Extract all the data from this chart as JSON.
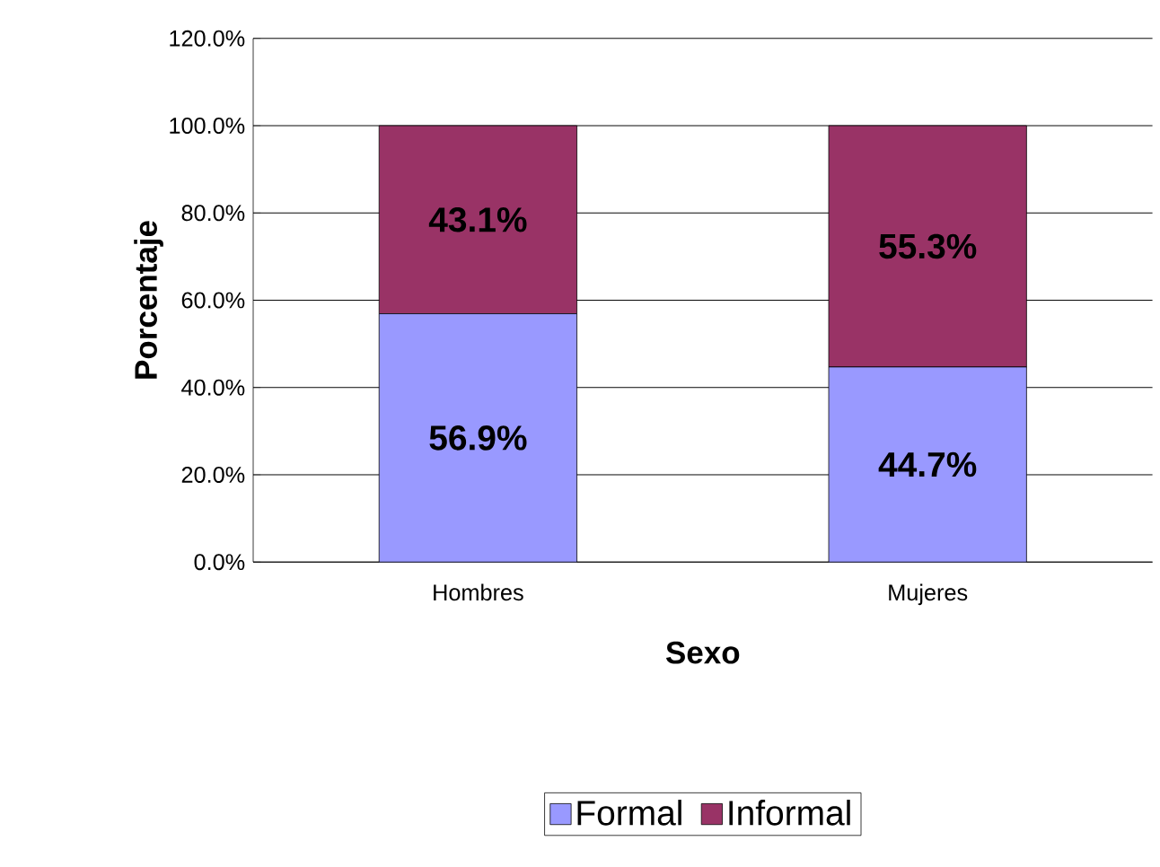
{
  "chart_data": {
    "type": "bar",
    "stacked": true,
    "xlabel": "Sexo",
    "ylabel": "Porcentaje",
    "categories": [
      "Hombres",
      "Mujeres"
    ],
    "series": [
      {
        "name": "Formal",
        "color": "#9999ff",
        "values": [
          56.9,
          44.7
        ],
        "value_labels": [
          "56.9%",
          "44.7%"
        ]
      },
      {
        "name": "Informal",
        "color": "#993366",
        "values": [
          43.1,
          55.3
        ],
        "value_labels": [
          "43.1%",
          "55.3%"
        ]
      }
    ],
    "ylim": [
      0,
      120
    ],
    "yticks": [
      {
        "value": 0,
        "label": "0.0%"
      },
      {
        "value": 20,
        "label": "20.0%"
      },
      {
        "value": 40,
        "label": "40.0%"
      },
      {
        "value": 60,
        "label": "60.0%"
      },
      {
        "value": 80,
        "label": "80.0%"
      },
      {
        "value": 100,
        "label": "100.0%"
      },
      {
        "value": 120,
        "label": "120.0%"
      }
    ],
    "grid": "y",
    "legend": "bottom"
  }
}
